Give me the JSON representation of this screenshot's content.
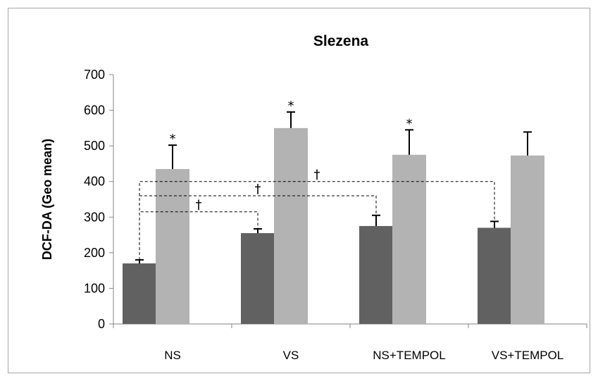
{
  "chart_data": {
    "type": "bar",
    "title": "Slezena",
    "xlabel": "",
    "ylabel": "DCF-DA (Geo mean)",
    "categories": [
      "NS",
      "VS",
      "NS+TEMPOL",
      "VS+TEMPOL"
    ],
    "ylim": [
      0,
      700
    ],
    "yticks": [
      0,
      100,
      200,
      300,
      400,
      500,
      600,
      700
    ],
    "grid": false,
    "legend": "none",
    "series": [
      {
        "color": "#616161",
        "values": [
          170,
          255,
          275,
          270
        ],
        "errors": [
          10,
          12,
          30,
          18
        ],
        "markers": [
          "",
          "",
          "",
          ""
        ]
      },
      {
        "color": "#b3b3b3",
        "values": [
          435,
          550,
          475,
          473
        ],
        "errors": [
          67,
          45,
          70,
          66
        ],
        "markers": [
          "*",
          "*",
          "*",
          ""
        ]
      }
    ],
    "comparisons": [
      {
        "from": 0,
        "to": 1,
        "level": 315,
        "symbol": "†"
      },
      {
        "from": 0,
        "to": 2,
        "level": 360,
        "symbol": "†"
      },
      {
        "from": 0,
        "to": 3,
        "level": 400,
        "symbol": "†"
      }
    ]
  }
}
